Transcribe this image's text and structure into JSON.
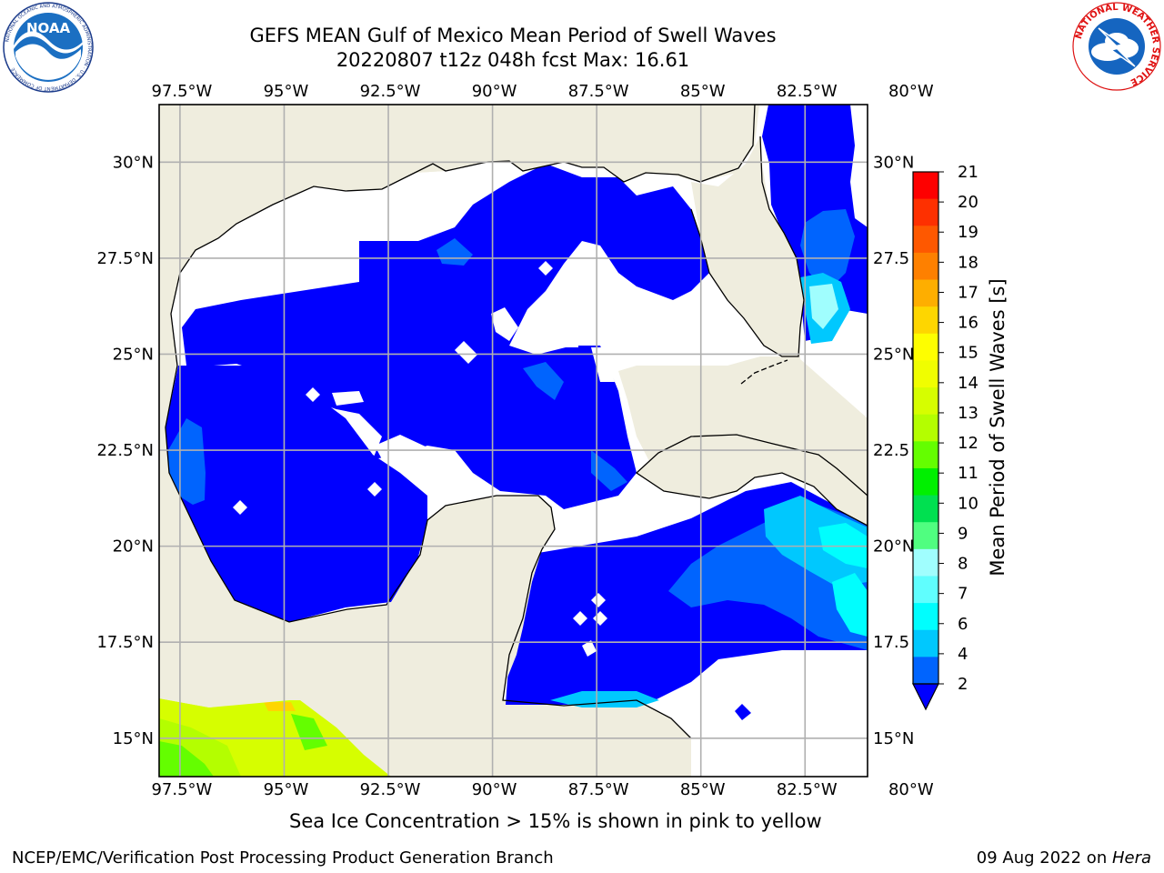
{
  "title": {
    "line1": "GEFS MEAN Gulf of Mexico Mean Period of Swell Waves",
    "line2": "20220807 t12z 048h fcst   Max: 16.61"
  },
  "map": {
    "lon_range": [
      -98.0,
      -81.0
    ],
    "lat_range": [
      14.0,
      31.5
    ],
    "lon_ticks": [
      "97.5°W",
      "95°W",
      "92.5°W",
      "90°W",
      "87.5°W",
      "85°W",
      "82.5°W",
      "80°W"
    ],
    "lat_ticks_left": [
      "30°N",
      "27.5°N",
      "25°N",
      "22.5°N",
      "20°N",
      "17.5°N",
      "15°N"
    ],
    "lat_ticks_right": [
      "30°N",
      "27.5",
      "25°N",
      "22.5",
      "20°N",
      "17.5",
      "15°N"
    ],
    "grid": true,
    "colors": {
      "land": "#efedde",
      "ocean_low": "#0000ff",
      "coast": "#000000",
      "grid": "#b0b0b0"
    }
  },
  "colorbar": {
    "label": "Mean Period of Swell Waves [s]",
    "ticks": [
      "21",
      "20",
      "19",
      "18",
      "17",
      "16",
      "15",
      "14",
      "13",
      "12",
      "11",
      "10",
      "9",
      "8",
      "7",
      "6",
      "4",
      "2"
    ],
    "colors": [
      "#fe0000",
      "#fe3000",
      "#fe5800",
      "#fe8000",
      "#feae00",
      "#fed600",
      "#fefe00",
      "#f0fe00",
      "#d6fe00",
      "#b4fe00",
      "#64fe00",
      "#00f000",
      "#00e050",
      "#50fe80",
      "#a0fefe",
      "#60fefe",
      "#00fefe",
      "#00c8fe",
      "#0064fe"
    ],
    "extend_color": "#0000ff"
  },
  "caption": "Sea Ice Concentration > 15% is shown in pink to yellow",
  "footer": {
    "left": "NCEP/EMC/Verification Post Processing Product Generation Branch",
    "date": "09 Aug 2022 on ",
    "host": "Hera"
  },
  "logos": {
    "left": "noaa-logo",
    "right": "nws-logo",
    "left_text": "NOAA",
    "left_ring_text": "NATIONAL OCEANIC AND ATMOSPHERIC ADMINISTRATION · U.S. DEPARTMENT OF COMMERCE",
    "right_ring_text": "NATIONAL WEATHER SERVICE"
  }
}
